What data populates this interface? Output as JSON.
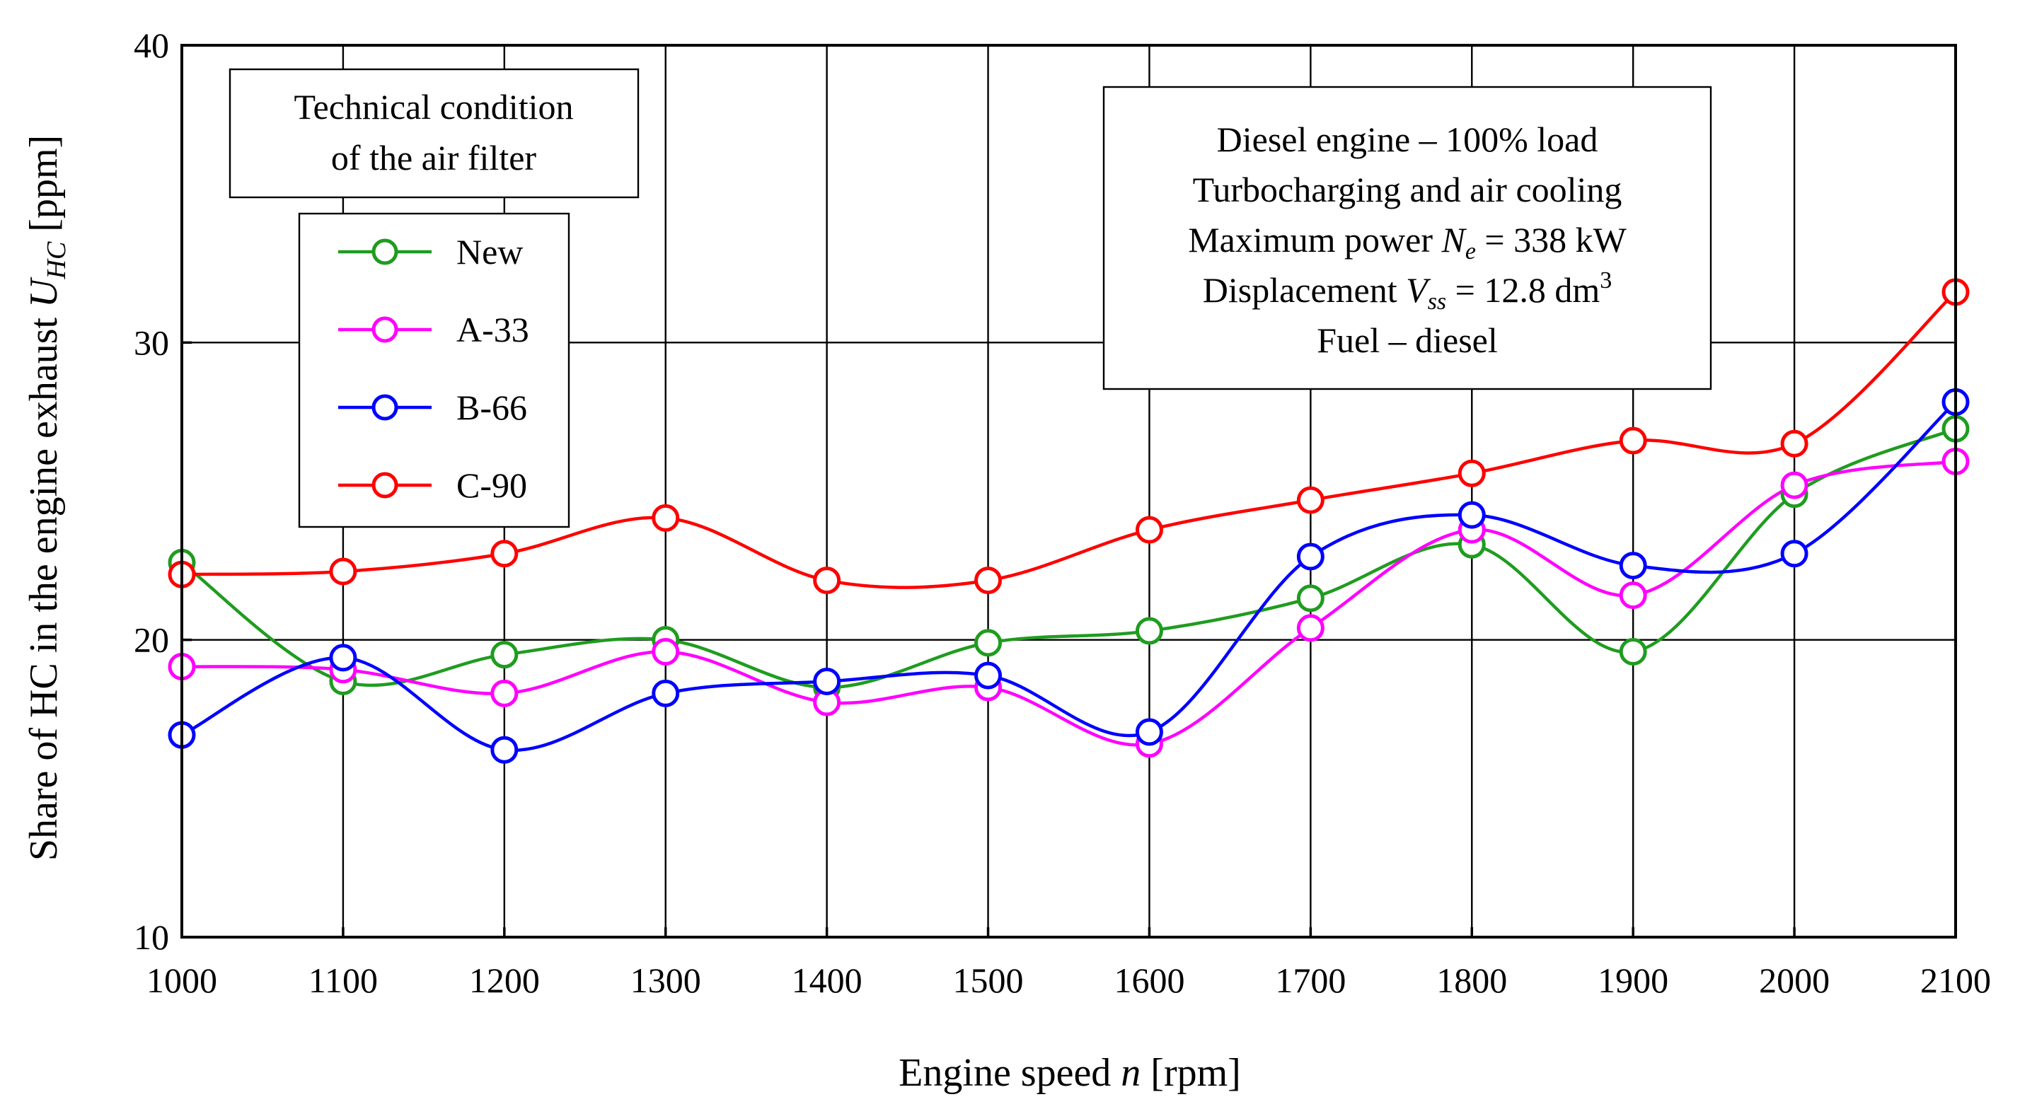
{
  "chart_data": {
    "type": "line",
    "x": [
      1000,
      1100,
      1200,
      1300,
      1400,
      1500,
      1600,
      1700,
      1800,
      1900,
      2000,
      2100
    ],
    "xlim": [
      1000,
      2100
    ],
    "ylim": [
      10,
      40
    ],
    "x_ticks": [
      1000,
      1100,
      1200,
      1300,
      1400,
      1500,
      1600,
      1700,
      1800,
      1900,
      2000,
      2100
    ],
    "y_ticks": [
      10,
      20,
      30,
      40
    ],
    "grid": true,
    "xlabel": {
      "pre": "Engine speed ",
      "var": "n",
      "post": " [rpm]"
    },
    "ylabel": {
      "pre": "Share of HC in the engine exhaust ",
      "var": "U",
      "sub": "HC",
      "post": " [ppm]"
    },
    "legend_title_lines": [
      "Technical condition",
      "of the air filter"
    ],
    "legend_position": "top-left",
    "series": [
      {
        "name": "New",
        "color": "#1f9c1f",
        "values": [
          22.6,
          18.6,
          19.5,
          20.0,
          18.4,
          19.9,
          20.3,
          21.4,
          23.2,
          19.6,
          24.9,
          27.1
        ]
      },
      {
        "name": "A-33",
        "color": "#ff00ff",
        "values": [
          19.1,
          19.0,
          18.2,
          19.6,
          17.9,
          18.4,
          16.5,
          20.4,
          23.7,
          21.5,
          25.2,
          26.0
        ]
      },
      {
        "name": "B-66",
        "color": "#0000ff",
        "values": [
          16.8,
          19.4,
          16.3,
          18.2,
          18.6,
          18.8,
          16.9,
          22.8,
          24.2,
          22.5,
          22.9,
          28.0
        ]
      },
      {
        "name": "C-90",
        "color": "#ff0000",
        "values": [
          22.2,
          22.3,
          22.9,
          24.1,
          22.0,
          22.0,
          23.7,
          24.7,
          25.6,
          26.7,
          26.6,
          31.7
        ]
      }
    ],
    "annotation": {
      "line1": "Diesel engine – 100% load",
      "line2": "Turbocharging and air cooling",
      "line3": {
        "pre": "Maximum power ",
        "var": "N",
        "sub": "e",
        "post": " = 338 kW"
      },
      "line4": {
        "pre": "Displacement ",
        "var": "V",
        "sub": "ss",
        "post": " = 12.8 dm",
        "sup": "3"
      },
      "line5": "Fuel – diesel"
    }
  }
}
